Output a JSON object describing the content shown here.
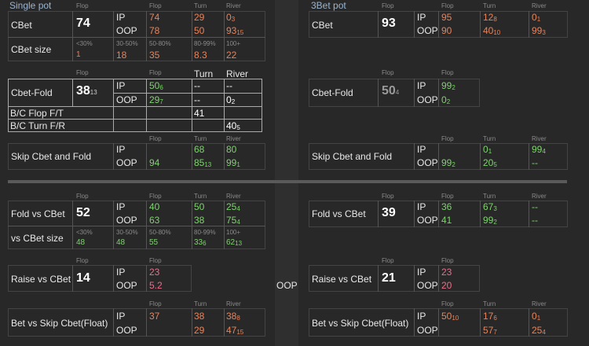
{
  "single_pot": {
    "title": "Single pot",
    "flop_head": "Flop",
    "cbet": {
      "label": "CBet",
      "flop": "74",
      "ip_label": "IP",
      "oop_label": "OOP",
      "ip": {
        "flop": "74",
        "turn": "29",
        "river": "0",
        "river_sub": "3"
      },
      "oop": {
        "flop": "78",
        "turn": "50",
        "river": "93",
        "river_sub": "15"
      },
      "hdr": {
        "flop": "Flop",
        "turn": "Turn",
        "river": "River"
      }
    },
    "cbet_size": {
      "label": "CBet size",
      "headers": [
        "<30%",
        "30-50%",
        "50-80%",
        "80-99%",
        "100+"
      ],
      "values": [
        "1",
        "18",
        "35",
        "8.3",
        "22"
      ]
    },
    "cbet_fold": {
      "label": "Cbet-Fold",
      "flop": "38",
      "flop_sub": "13",
      "hdr": {
        "flop": "Flop",
        "turn": "Turn",
        "river": "River"
      },
      "ip": {
        "flop": "50",
        "flop_sub": "6",
        "turn": "--",
        "river": "--"
      },
      "oop": {
        "flop": "29",
        "flop_sub": "7",
        "turn": "--",
        "river": "0",
        "river_sub": "2"
      },
      "bc_flop_label": "B/C Flop F/T",
      "bc_flop_turn": "41",
      "bc_turn_label": "B/C Turn F/R",
      "bc_turn_river": "40",
      "bc_turn_river_sub": "5"
    },
    "skip_cbet_fold": {
      "label": "Skip Cbet and Fold",
      "hdr": {
        "flop": "Flop",
        "turn": "Turn",
        "river": "River"
      },
      "ip": {
        "flop": "",
        "turn": "68",
        "river": "80"
      },
      "oop": {
        "flop": "94",
        "turn": "85",
        "turn_sub": "13",
        "river": "99",
        "river_sub": "1"
      }
    },
    "fold_vs_cbet": {
      "label": "Fold vs CBet",
      "flop": "52",
      "hdr": {
        "flop": "Flop",
        "turn": "Turn",
        "river": "River"
      },
      "ip": {
        "flop": "40",
        "turn": "50",
        "river": "25",
        "river_sub": "4"
      },
      "oop": {
        "flop": "63",
        "turn": "38",
        "river": "75",
        "river_sub": "4"
      }
    },
    "vs_cbet_size": {
      "label": "vs CBet size",
      "headers": [
        "<30%",
        "30-50%",
        "50-80%",
        "80-99%",
        "100+"
      ],
      "values": [
        "48",
        "48",
        "55",
        "33",
        "62"
      ],
      "subs": [
        "",
        "",
        "",
        "6",
        "13"
      ]
    },
    "raise_vs_cbet": {
      "label": "Raise vs CBet",
      "flop": "14",
      "hdr": {
        "flop": "Flop"
      },
      "ip": {
        "flop": "23"
      },
      "oop": {
        "flop": "5.2"
      }
    },
    "bet_vs_skip": {
      "label": "Bet vs Skip Cbet(Float)",
      "hdr": {
        "flop": "Flop",
        "turn": "Turn",
        "river": "River"
      },
      "ip": {
        "flop": "37",
        "turn": "38",
        "river": "38",
        "river_sub": "8"
      },
      "oop": {
        "flop": "",
        "turn": "29",
        "river": "47",
        "river_sub": "15"
      }
    }
  },
  "three_bet_pot": {
    "title": "3Bet pot",
    "cbet": {
      "label": "CBet",
      "flop": "93",
      "hdr": {
        "flop": "Flop",
        "turn": "Turn",
        "river": "River"
      },
      "ip": {
        "flop": "95",
        "turn": "12",
        "turn_sub": "8",
        "river": "0",
        "river_sub": "1"
      },
      "oop": {
        "flop": "90",
        "turn": "40",
        "turn_sub": "10",
        "river": "99",
        "river_sub": "3"
      }
    },
    "cbet_fold": {
      "label": "Cbet-Fold",
      "flop": "50",
      "flop_sub": "4",
      "hdr": {
        "flop": "Flop"
      },
      "ip": {
        "flop": "99",
        "flop_sub": "2"
      },
      "oop": {
        "flop": "0",
        "flop_sub": "2"
      }
    },
    "skip_cbet_fold": {
      "label": "Skip Cbet and Fold",
      "hdr": {
        "flop": "Flop",
        "turn": "Turn",
        "river": "River"
      },
      "ip": {
        "turn": "0",
        "turn_sub": "1",
        "river": "99",
        "river_sub": "4"
      },
      "oop": {
        "flop": "99",
        "flop_sub": "2",
        "turn": "20",
        "turn_sub": "5",
        "river": "--"
      }
    },
    "fold_vs_cbet": {
      "label": "Fold vs CBet",
      "flop": "39",
      "hdr": {
        "flop": "Flop",
        "turn": "Turn",
        "river": "River"
      },
      "ip": {
        "flop": "36",
        "turn": "67",
        "turn_sub": "3",
        "river": "--"
      },
      "oop": {
        "flop": "41",
        "turn": "99",
        "turn_sub": "2",
        "river": "--"
      }
    },
    "raise_vs_cbet": {
      "label": "Raise vs CBet",
      "flop": "21",
      "hdr": {
        "flop": "Flop"
      },
      "ip": {
        "flop": "23"
      },
      "oop": {
        "flop": "20"
      }
    },
    "bet_vs_skip": {
      "label": "Bet vs Skip Cbet(Float)",
      "hdr": {
        "flop": "Flop",
        "turn": "Turn",
        "river": "River"
      },
      "ip": {
        "flop": "50",
        "flop_sub": "10",
        "turn": "17",
        "turn_sub": "6",
        "river": "0",
        "river_sub": "1"
      },
      "oop": {
        "flop": "",
        "turn": "57",
        "turn_sub": "7",
        "river": "25",
        "river_sub": "4"
      }
    }
  },
  "center_label": "OOP",
  "labels": {
    "ip": "IP",
    "oop": "OOP",
    "flop": "Flop",
    "turn": "Turn",
    "river": "River"
  }
}
